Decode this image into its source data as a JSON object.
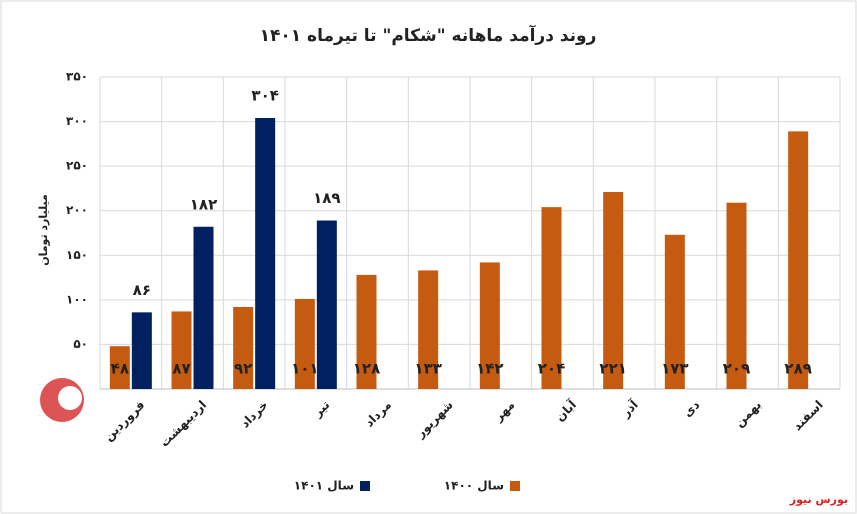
{
  "chart_data": {
    "type": "bar",
    "title": "روند درآمد ماهانه \"شکام\" تا تیرماه ۱۴۰۱",
    "y_label": "میلیارد تومان",
    "source": "بورس نیوز",
    "categories": [
      "فروردین",
      "اردیبهشت",
      "خرداد",
      "تیر",
      "مرداد",
      "شهریور",
      "مهر",
      "آبان",
      "آذر",
      "دی",
      "بهمن",
      "اسفند"
    ],
    "series": [
      {
        "name": "سال ۱۴۰۰",
        "color": "#c55a11",
        "values": [
          48,
          87,
          92,
          101,
          128,
          133,
          142,
          204,
          221,
          173,
          209,
          289
        ],
        "value_labels": [
          "۴۸",
          "۸۷",
          "۹۲",
          "۱۰۱",
          "۱۲۸",
          "۱۳۳",
          "۱۴۲",
          "۲۰۴",
          "۲۲۱",
          "۱۷۳",
          "۲۰۹",
          "۲۸۹"
        ]
      },
      {
        "name": "سال ۱۴۰۱",
        "color": "#002060",
        "values": [
          86,
          182,
          304,
          189,
          null,
          null,
          null,
          null,
          null,
          null,
          null,
          null
        ],
        "value_labels": [
          "۸۶",
          "۱۸۲",
          "۳۰۴",
          "۱۸۹",
          null,
          null,
          null,
          null,
          null,
          null,
          null,
          null
        ]
      }
    ],
    "ylim": [
      0,
      350
    ],
    "yticks": [
      {
        "value": 50,
        "label": "۵۰"
      },
      {
        "value": 100,
        "label": "۱۰۰"
      },
      {
        "value": 150,
        "label": "۱۵۰"
      },
      {
        "value": 200,
        "label": "۲۰۰"
      },
      {
        "value": 250,
        "label": "۲۵۰"
      },
      {
        "value": 300,
        "label": "۳۰۰"
      },
      {
        "value": 350,
        "label": "۳۵۰"
      }
    ],
    "grid": true,
    "legend": "bottom"
  }
}
